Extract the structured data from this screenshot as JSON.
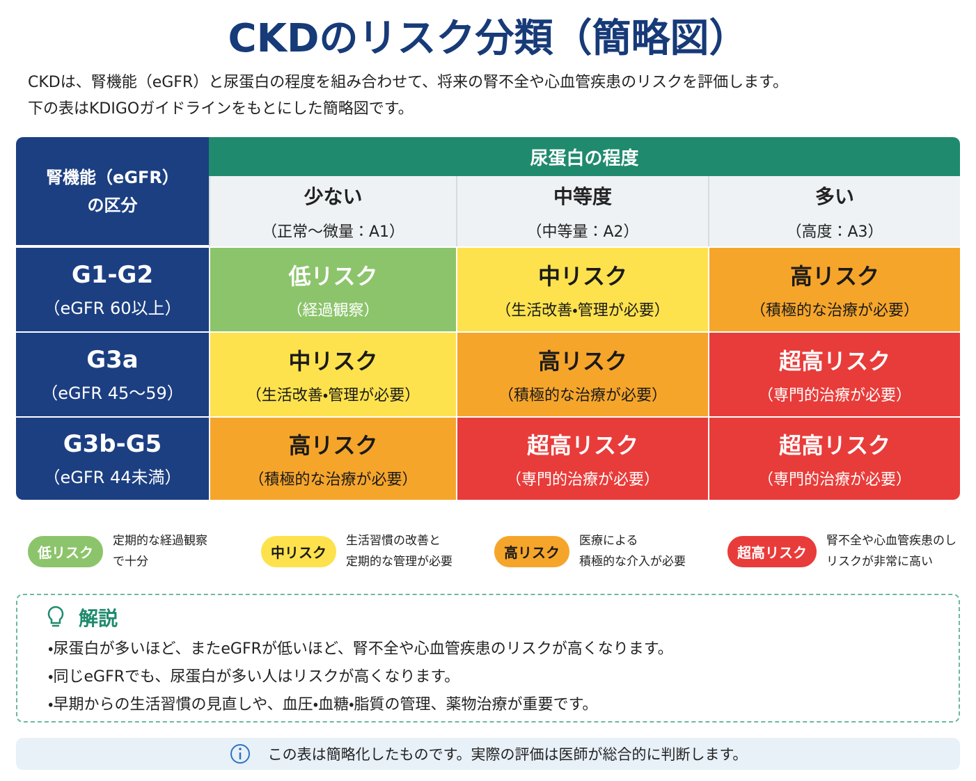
{
  "title": "CKDのリスク分類（簡略図）",
  "intro": [
    "CKDは、腎機能（eGFR）と尿蛋白の程度を組み合わせて、将来の腎不全や心血管疾患のリスクを評価します。",
    "下の表はKDIGOガイドラインをもとにした簡略図です。"
  ],
  "table": {
    "corner": [
      "腎機能（eGFR）",
      "の区分"
    ],
    "header": "尿蛋白の程度",
    "columns": [
      {
        "label": "少ない",
        "sub": "（正常〜微量：A1）"
      },
      {
        "label": "中等度",
        "sub": "（中等量：A2）"
      },
      {
        "label": "多い",
        "sub": "（高度：A3）"
      }
    ],
    "rows": [
      {
        "label": "G1-G2",
        "sub": "（eGFR 60以上）",
        "cells": [
          {
            "risk": "低リスク",
            "note": "（経過観察）",
            "color": "#8cc46b"
          },
          {
            "risk": "中リスク",
            "note": "（生活改善・管理が必要）",
            "color": "#fde24d"
          },
          {
            "risk": "高リスク",
            "note": "（積極的な治療が必要）",
            "color": "#f6a52b"
          }
        ]
      },
      {
        "label": "G3a",
        "sub": "（eGFR 45〜59）",
        "cells": [
          {
            "risk": "中リスク",
            "note": "（生活改善・管理が必要）",
            "color": "#fde24d"
          },
          {
            "risk": "高リスク",
            "note": "（積極的な治療が必要）",
            "color": "#f6a52b"
          },
          {
            "risk": "超高リスク",
            "note": "（専門的治療が必要）",
            "color": "#e83c3a"
          }
        ]
      },
      {
        "label": "G3b-G5",
        "sub": "（eGFR 44未満）",
        "cells": [
          {
            "risk": "高リスク",
            "note": "（積極的な治療が必要）",
            "color": "#f6a52b"
          },
          {
            "risk": "超高リスク",
            "note": "（専門的治療が必要）",
            "color": "#e83c3a"
          },
          {
            "risk": "超高リスク",
            "note": "（専門的治療が必要）",
            "color": "#e83c3a"
          }
        ]
      }
    ]
  },
  "legend": [
    {
      "label": "低リスク",
      "color": "#8cc46b",
      "text": [
        "定期的な経過観察",
        "で十分"
      ]
    },
    {
      "label": "中リスク",
      "color": "#fde24d",
      "text": [
        "生活習慣の改善と",
        "定期的な管理が必要"
      ]
    },
    {
      "label": "高リスク",
      "color": "#f6a52b",
      "text": [
        "医療による",
        "積極的な介入が必要"
      ]
    },
    {
      "label": "超高リスク",
      "color": "#e83c3a",
      "text": [
        "腎不全や心血管疾患のし",
        "リスクが非常に高い"
      ]
    }
  ],
  "explanation": {
    "title": "解説",
    "items": [
      "・尿蛋白が多いほど、またeGFRが低いほど、腎不全や心血管疾患のリスクが高くなります。",
      "・同じeGFRでも、尿蛋白が多い人はリスクが高くなります。",
      "・早期からの生活習慣の見直しや、血圧・血糖・脂質の管理、薬物治療が重要です。"
    ]
  },
  "note": "この表は簡略化したものです。実際の評価は医師が総合的に判断します。"
}
